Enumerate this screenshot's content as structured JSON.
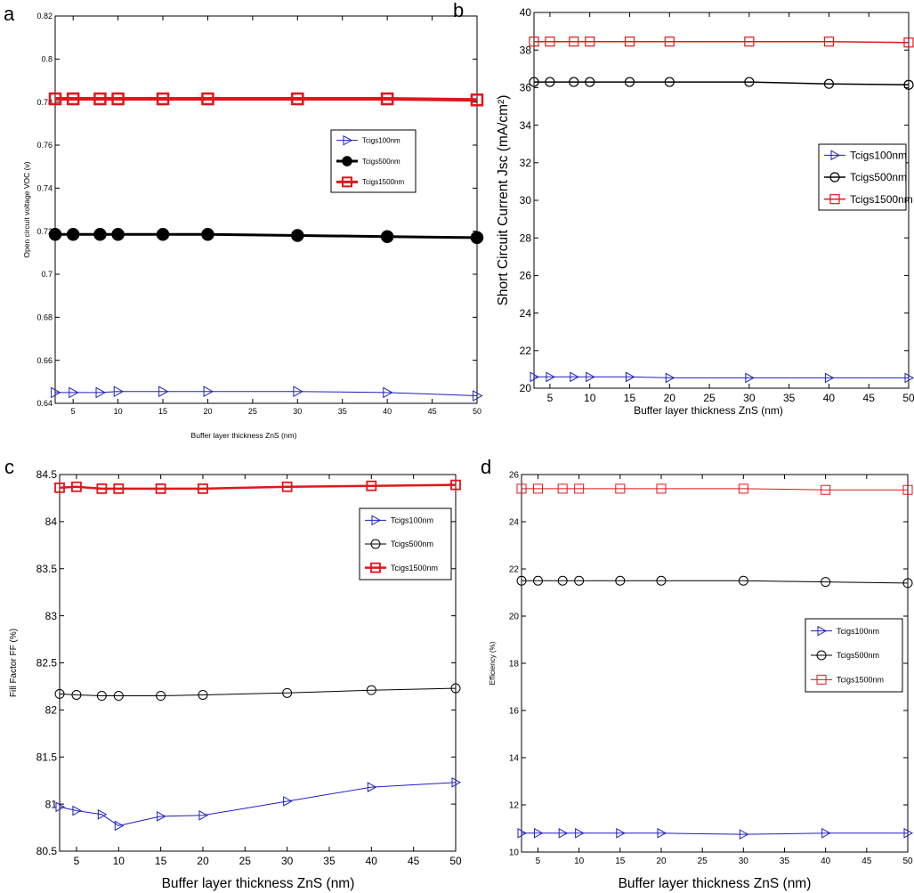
{
  "figure": {
    "panel_labels": [
      "a",
      "b",
      "c",
      "d"
    ]
  },
  "styles": {
    "series_colors": [
      "#1f1fbf",
      "#000000",
      "#e0161b"
    ],
    "marker_shapes": [
      "triangle-right",
      "circle",
      "square"
    ]
  },
  "chart_data": [
    {
      "type": "line",
      "panel_label": "a",
      "title": "",
      "xlabel": "Buffer layer thickness ZnS (nm)",
      "ylabel": "Open circuit  voltage VOC (v)",
      "x": [
        3,
        5,
        8,
        10,
        15,
        20,
        30,
        40,
        50
      ],
      "xlim": [
        3,
        50
      ],
      "ylim": [
        0.64,
        0.82
      ],
      "xticks": [
        5,
        10,
        15,
        20,
        25,
        30,
        35,
        40,
        45,
        50
      ],
      "yticks": [
        0.64,
        0.66,
        0.68,
        0.7,
        0.72,
        0.74,
        0.76,
        0.78,
        0.8,
        0.82
      ],
      "ytick_labels": [
        "0.64",
        "0.66",
        "0.68",
        "0.7",
        "0.72",
        "0.74",
        "0.76",
        "0.78",
        "0.8",
        "0.82"
      ],
      "legend_position": "middle-right",
      "series": [
        {
          "name": "Tcigs100nm",
          "values": [
            0.645,
            0.645,
            0.645,
            0.6455,
            0.6455,
            0.6455,
            0.6455,
            0.645,
            0.6435
          ]
        },
        {
          "name": "Tcigs500nm",
          "values": [
            0.7185,
            0.7185,
            0.7185,
            0.7185,
            0.7185,
            0.7185,
            0.718,
            0.7175,
            0.717
          ]
        },
        {
          "name": "Tcigs1500nm",
          "values": [
            0.7815,
            0.7815,
            0.7815,
            0.7815,
            0.7815,
            0.7815,
            0.7815,
            0.7815,
            0.781
          ]
        }
      ]
    },
    {
      "type": "line",
      "panel_label": "b",
      "title": "",
      "xlabel": "Buffer layer thickness ZnS (nm)",
      "ylabel": "Short Circuit Current Jsc (mA/cm²)",
      "x": [
        3,
        5,
        8,
        10,
        15,
        20,
        30,
        40,
        50
      ],
      "xlim": [
        3,
        50
      ],
      "ylim": [
        20,
        40
      ],
      "xticks": [
        5,
        10,
        15,
        20,
        25,
        30,
        35,
        40,
        45,
        50
      ],
      "yticks": [
        20,
        22,
        24,
        26,
        28,
        30,
        32,
        34,
        36,
        38,
        40
      ],
      "ytick_labels": [
        "20",
        "22",
        "24",
        "26",
        "28",
        "30",
        "32",
        "34",
        "36",
        "38",
        "40"
      ],
      "legend_position": "middle-right",
      "series": [
        {
          "name": "Tcigs100nm",
          "values": [
            20.6,
            20.6,
            20.6,
            20.6,
            20.6,
            20.55,
            20.55,
            20.55,
            20.55
          ]
        },
        {
          "name": "Tcigs500nm",
          "values": [
            36.3,
            36.3,
            36.3,
            36.3,
            36.3,
            36.3,
            36.3,
            36.2,
            36.15
          ]
        },
        {
          "name": "Tcigs1500nm",
          "values": [
            38.45,
            38.45,
            38.45,
            38.45,
            38.45,
            38.45,
            38.45,
            38.45,
            38.4
          ]
        }
      ]
    },
    {
      "type": "line",
      "panel_label": "c",
      "title": "",
      "xlabel": "Buffer layer thickness ZnS (nm)",
      "ylabel": "Fill Factor FF (%)",
      "x": [
        3,
        5,
        8,
        10,
        15,
        20,
        30,
        40,
        50
      ],
      "xlim": [
        3,
        50
      ],
      "ylim": [
        80.5,
        84.5
      ],
      "xticks": [
        5,
        10,
        15,
        20,
        25,
        30,
        35,
        40,
        45,
        50
      ],
      "yticks": [
        80.5,
        81,
        81.5,
        82,
        82.5,
        83,
        83.5,
        84,
        84.5
      ],
      "ytick_labels": [
        "80.5",
        "81",
        "81.5",
        "82",
        "82.5",
        "83",
        "83.5",
        "84",
        "84.5"
      ],
      "legend_position": "top-right",
      "series": [
        {
          "name": "Tcigs100nm",
          "values": [
            80.97,
            80.93,
            80.89,
            80.77,
            80.87,
            80.88,
            81.03,
            81.18,
            81.23
          ]
        },
        {
          "name": "Tcigs500nm",
          "values": [
            82.17,
            82.16,
            82.15,
            82.15,
            82.15,
            82.16,
            82.18,
            82.21,
            82.23
          ]
        },
        {
          "name": "Tcigs1500nm",
          "values": [
            84.36,
            84.37,
            84.35,
            84.35,
            84.35,
            84.35,
            84.37,
            84.38,
            84.39
          ]
        }
      ]
    },
    {
      "type": "line",
      "panel_label": "d",
      "title": "",
      "xlabel": "Buffer layer thickness ZnS (nm)",
      "ylabel": "Efficiency (%)",
      "x": [
        3,
        5,
        8,
        10,
        15,
        20,
        30,
        40,
        50
      ],
      "xlim": [
        3,
        50
      ],
      "ylim": [
        10,
        26
      ],
      "xticks": [
        5,
        10,
        15,
        20,
        25,
        30,
        35,
        40,
        45,
        50
      ],
      "yticks": [
        10,
        12,
        14,
        16,
        18,
        20,
        22,
        24,
        26
      ],
      "ytick_labels": [
        "10",
        "12",
        "14",
        "16",
        "18",
        "20",
        "22",
        "24",
        "26"
      ],
      "legend_position": "middle-right",
      "series": [
        {
          "name": "Tcigs100nm",
          "values": [
            10.8,
            10.8,
            10.8,
            10.8,
            10.8,
            10.8,
            10.75,
            10.8,
            10.8
          ]
        },
        {
          "name": "Tcigs500nm",
          "values": [
            21.5,
            21.5,
            21.5,
            21.5,
            21.5,
            21.5,
            21.5,
            21.45,
            21.4
          ]
        },
        {
          "name": "Tcigs1500nm",
          "values": [
            25.4,
            25.4,
            25.4,
            25.4,
            25.4,
            25.4,
            25.4,
            25.35,
            25.35
          ]
        }
      ]
    }
  ]
}
